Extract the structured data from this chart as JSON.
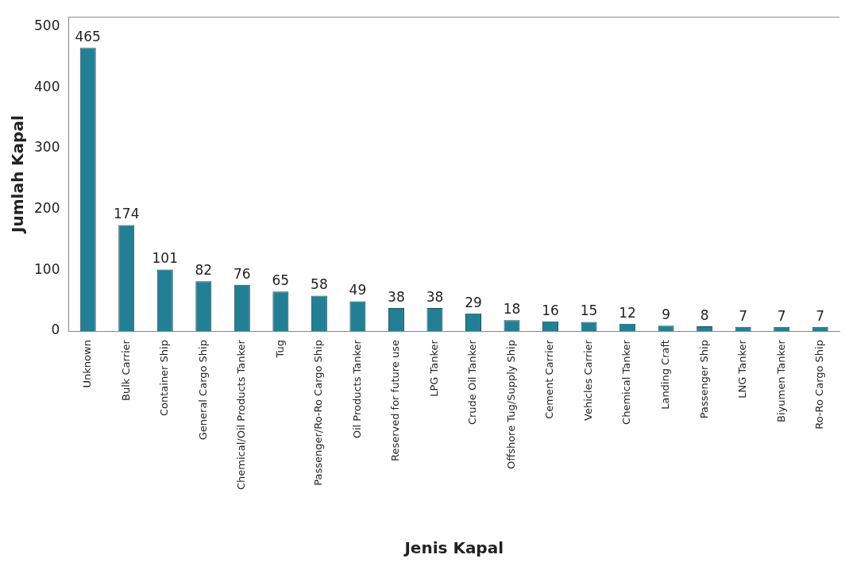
{
  "chart_data": {
    "type": "bar",
    "xlabel": "Jenis Kapal",
    "ylabel": "Jumlah Kapal",
    "categories": [
      "Unknown",
      "Bulk Carrier",
      "Container Ship",
      "General Cargo Ship",
      "Chemical/Oil Products Tanker",
      "Tug",
      "Passenger/Ro-Ro Cargo Ship",
      "Oil Products Tanker",
      "Reserved for future use",
      "LPG Tanker",
      "Crude Oil Tanker",
      "Offshore Tug/Supply Ship",
      "Cement Carrier",
      "Vehicles Carrier",
      "Chemical Tanker",
      "Landing Craft",
      "Passenger Ship",
      "LNG Tanker",
      "Biyumen Tanker",
      "Ro-Ro Cargo Ship"
    ],
    "values": [
      465,
      174,
      101,
      82,
      76,
      65,
      58,
      49,
      38,
      38,
      29,
      18,
      16,
      15,
      12,
      9,
      8,
      7,
      7,
      7
    ],
    "color": "#237f94",
    "ylim": [
      0,
      516
    ],
    "yticks": [
      0,
      100,
      200,
      300,
      400,
      500
    ],
    "grid": false,
    "legend": false,
    "data_labels": true
  }
}
